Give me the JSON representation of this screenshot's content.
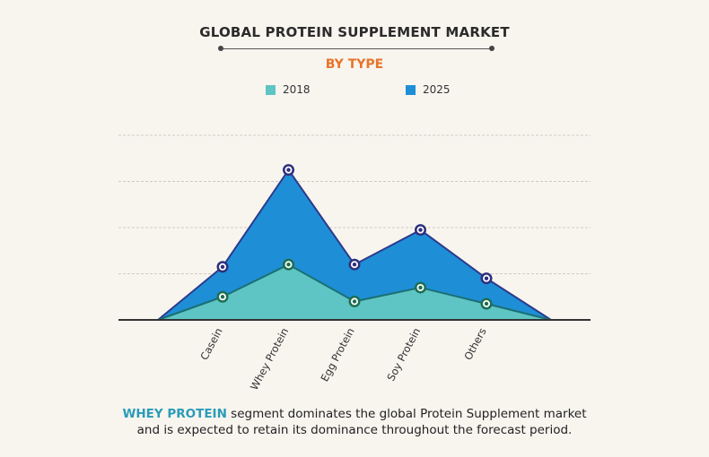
{
  "title": "GLOBAL PROTEIN SUPPLEMENT MARKET",
  "subtitle": "BY TYPE",
  "caption": {
    "highlight": "WHEY PROTEIN",
    "line1_rest": " segment dominates the global Protein Supplement market",
    "line2": "and is expected to retain its dominance throughout the forecast period."
  },
  "colors": {
    "series_2018": "#5ec4c4",
    "series_2025": "#1e8fd6",
    "stroke_2018": "#1b6f72",
    "stroke_2025": "#2d3a8c",
    "marker_2018": "#1d6e52",
    "marker_2025": "#2e2f7e",
    "gridline": "#cfcac0",
    "axis": "#333333"
  },
  "chart_data": {
    "type": "area",
    "categories": [
      "Casein",
      "Whey Protein",
      "Egg Protein",
      "Soy Protein",
      "Others"
    ],
    "series": [
      {
        "name": "2018",
        "values": [
          1.0,
          2.4,
          0.8,
          1.4,
          0.7
        ]
      },
      {
        "name": "2025",
        "values": [
          2.3,
          6.5,
          2.4,
          3.9,
          1.8
        ]
      }
    ],
    "ylim": [
      0,
      8
    ],
    "grid": true,
    "legend_position": "top-center",
    "y_tick_labels_shown": false
  }
}
